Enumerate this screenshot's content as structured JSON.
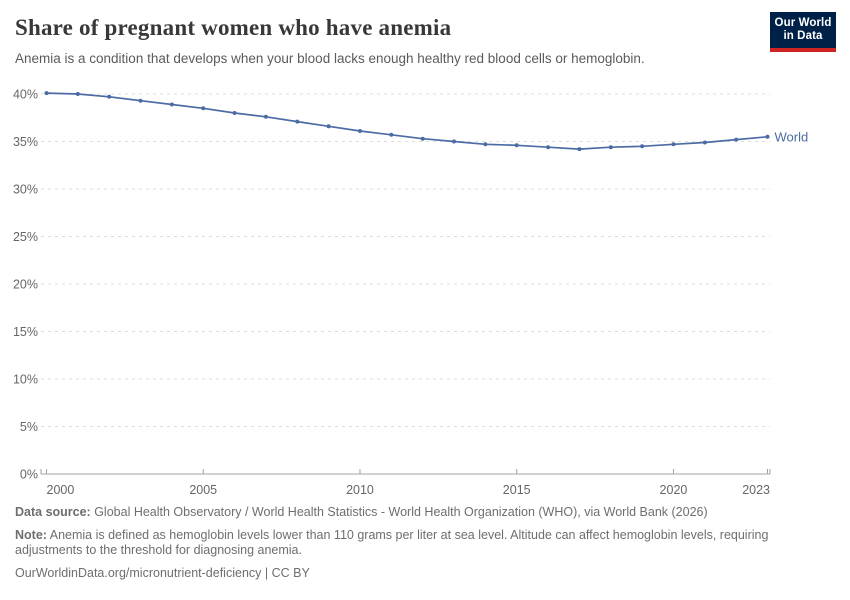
{
  "header": {
    "title": "Share of pregnant women who have anemia",
    "subtitle": "Anemia is a condition that develops when your blood lacks enough healthy red blood cells or hemoglobin."
  },
  "logo": {
    "line1": "Our World",
    "line2": "in Data",
    "bg_color": "#002147",
    "bar_color": "#cf2423"
  },
  "chart_data": {
    "type": "line",
    "title": "Share of pregnant women who have anemia",
    "xlabel": "",
    "ylabel": "",
    "x": [
      2000,
      2001,
      2002,
      2003,
      2004,
      2005,
      2006,
      2007,
      2008,
      2009,
      2010,
      2011,
      2012,
      2013,
      2014,
      2015,
      2016,
      2017,
      2018,
      2019,
      2020,
      2021,
      2022,
      2023
    ],
    "series": [
      {
        "name": "World",
        "color": "#4c6ba5",
        "values": [
          40.1,
          40.0,
          39.7,
          39.3,
          38.9,
          38.5,
          38.0,
          37.6,
          37.1,
          36.6,
          36.1,
          35.7,
          35.3,
          35.0,
          34.7,
          34.6,
          34.4,
          34.2,
          34.4,
          34.5,
          34.7,
          34.9,
          35.2,
          35.5
        ]
      }
    ],
    "xticks": [
      2000,
      2005,
      2010,
      2015,
      2020,
      2023
    ],
    "yticks": [
      0,
      5,
      10,
      15,
      20,
      25,
      30,
      35,
      40
    ],
    "ytick_suffix": "%",
    "xlim": [
      2000,
      2023
    ],
    "ylim": [
      0,
      40
    ],
    "grid": "horizontal-dashed",
    "legend_position": "line-end-label",
    "grid_color": "#dcdcdc",
    "axis_color": "#a3a3a3",
    "tick_label_color": "#666666"
  },
  "footer": {
    "source_label": "Data source:",
    "source_text": " Global Health Observatory / World Health Statistics - World Health Organization (WHO), via World Bank (2026)",
    "note_label": "Note:",
    "note_text": " Anemia is defined as hemoglobin levels lower than 110 grams per liter at sea level. Altitude can affect hemoglobin levels, requiring adjustments to the threshold for diagnosing anemia.",
    "url_text": "OurWorldinData.org/micronutrient-deficiency | CC BY"
  }
}
